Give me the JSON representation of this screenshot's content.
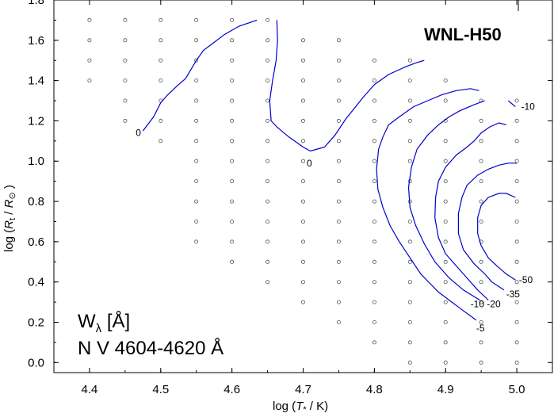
{
  "chart_data": {
    "type": "line",
    "title": "WNL-H50",
    "xlabel_main": "log (",
    "xlabel_var": "T",
    "xlabel_sub": "*",
    "xlabel_unit": " / K)",
    "ylabel_main": "log (",
    "ylabel_var": "R",
    "ylabel_sub": "t",
    "ylabel_mid": " / ",
    "ylabel_var2": "R",
    "ylabel_sub2": "⊙",
    "ylabel_end": " )",
    "annotation_line1": "W",
    "annotation_sub": "λ",
    "annotation_unit": " [Å]",
    "annotation_line2": "N V 4604-4620 Å",
    "xlim": [
      4.35,
      5.05
    ],
    "ylim": [
      -0.05,
      1.8
    ],
    "x_ticks": [
      4.4,
      4.5,
      4.6,
      4.7,
      4.8,
      4.9,
      5.0
    ],
    "x_tick_labels": [
      "4.4",
      "4.5",
      "4.6",
      "4.7",
      "4.8",
      "4.9",
      "5.0"
    ],
    "y_ticks": [
      0.0,
      0.2,
      0.4,
      0.6,
      0.8,
      1.0,
      1.2,
      1.4,
      1.6,
      1.8
    ],
    "y_tick_labels": [
      "0.0",
      "0.2",
      "0.4",
      "0.6",
      "0.8",
      "1.0",
      "1.2",
      "1.4",
      "1.6",
      "1.8"
    ],
    "grid_columns": [
      {
        "x": 4.4,
        "y_min": 1.4,
        "y_max": 1.7
      },
      {
        "x": 4.45,
        "y_min": 1.2,
        "y_max": 1.7
      },
      {
        "x": 4.5,
        "y_min": 1.1,
        "y_max": 1.7
      },
      {
        "x": 4.55,
        "y_min": 0.6,
        "y_max": 1.7
      },
      {
        "x": 4.6,
        "y_min": 0.5,
        "y_max": 1.7
      },
      {
        "x": 4.65,
        "y_min": 0.4,
        "y_max": 1.7
      },
      {
        "x": 4.7,
        "y_min": 0.3,
        "y_max": 1.6
      },
      {
        "x": 4.75,
        "y_min": 0.2,
        "y_max": 1.6
      },
      {
        "x": 4.8,
        "y_min": 0.1,
        "y_max": 1.5
      },
      {
        "x": 4.85,
        "y_min": 0.0,
        "y_max": 1.5
      },
      {
        "x": 4.9,
        "y_min": 0.0,
        "y_max": 1.4
      },
      {
        "x": 4.95,
        "y_min": 0.0,
        "y_max": 1.3
      },
      {
        "x": 5.0,
        "y_min": 0.0,
        "y_max": 1.3
      }
    ],
    "contours": [
      {
        "label": "0",
        "label_x": 4.465,
        "label_y": 1.14,
        "points": [
          [
            4.475,
            1.15
          ],
          [
            4.49,
            1.22
          ],
          [
            4.5,
            1.29
          ],
          [
            4.51,
            1.33
          ],
          [
            4.525,
            1.38
          ],
          [
            4.535,
            1.41
          ],
          [
            4.55,
            1.5
          ],
          [
            4.56,
            1.55
          ],
          [
            4.575,
            1.59
          ],
          [
            4.59,
            1.63
          ],
          [
            4.61,
            1.67
          ],
          [
            4.635,
            1.7
          ]
        ]
      },
      {
        "label": "0",
        "label_x": 4.705,
        "label_y": 0.99,
        "points": [
          [
            4.663,
            1.7
          ],
          [
            4.664,
            1.6
          ],
          [
            4.662,
            1.5
          ],
          [
            4.657,
            1.4
          ],
          [
            4.653,
            1.3
          ],
          [
            4.655,
            1.2
          ],
          [
            4.663,
            1.17
          ],
          [
            4.68,
            1.12
          ],
          [
            4.7,
            1.07
          ],
          [
            4.71,
            1.05
          ],
          [
            4.72,
            1.06
          ],
          [
            4.73,
            1.07
          ],
          [
            4.745,
            1.13
          ],
          [
            4.76,
            1.21
          ],
          [
            4.785,
            1.32
          ],
          [
            4.8,
            1.38
          ],
          [
            4.82,
            1.43
          ],
          [
            4.845,
            1.47
          ],
          [
            4.86,
            1.49
          ],
          [
            4.87,
            1.5
          ]
        ]
      },
      {
        "label": "-5",
        "label_x": 4.943,
        "label_y": 0.17,
        "points": [
          [
            4.943,
            0.21
          ],
          [
            4.92,
            0.27
          ],
          [
            4.89,
            0.35
          ],
          [
            4.865,
            0.44
          ],
          [
            4.85,
            0.52
          ],
          [
            4.835,
            0.6
          ],
          [
            4.822,
            0.68
          ],
          [
            4.812,
            0.77
          ],
          [
            4.805,
            0.86
          ],
          [
            4.803,
            0.96
          ],
          [
            4.806,
            1.06
          ],
          [
            4.812,
            1.12
          ],
          [
            4.82,
            1.18
          ],
          [
            4.835,
            1.22
          ],
          [
            4.855,
            1.27
          ],
          [
            4.875,
            1.3
          ],
          [
            4.895,
            1.33
          ],
          [
            4.915,
            1.35
          ],
          [
            4.935,
            1.36
          ],
          [
            4.947,
            1.35
          ]
        ]
      },
      {
        "label": "-10",
        "label_x": 4.935,
        "label_y": 0.29,
        "points": [
          [
            4.948,
            0.31
          ],
          [
            4.925,
            0.36
          ],
          [
            4.905,
            0.42
          ],
          [
            4.885,
            0.5
          ],
          [
            4.87,
            0.59
          ],
          [
            4.858,
            0.68
          ],
          [
            4.85,
            0.77
          ],
          [
            4.848,
            0.87
          ],
          [
            4.852,
            0.97
          ],
          [
            4.86,
            1.06
          ],
          [
            4.875,
            1.13
          ],
          [
            4.89,
            1.18
          ],
          [
            4.905,
            1.22
          ],
          [
            4.92,
            1.25
          ],
          [
            4.94,
            1.28
          ],
          [
            4.955,
            1.3
          ]
        ]
      },
      {
        "label": "-20",
        "label_x": 4.958,
        "label_y": 0.29,
        "points": [
          [
            4.96,
            0.31
          ],
          [
            4.945,
            0.36
          ],
          [
            4.93,
            0.42
          ],
          [
            4.915,
            0.48
          ],
          [
            4.9,
            0.54
          ],
          [
            4.89,
            0.62
          ],
          [
            4.885,
            0.72
          ],
          [
            4.886,
            0.82
          ],
          [
            4.89,
            0.9
          ],
          [
            4.9,
            0.97
          ],
          [
            4.915,
            1.03
          ],
          [
            4.93,
            1.07
          ],
          [
            4.94,
            1.1
          ],
          [
            4.95,
            1.14
          ],
          [
            4.962,
            1.17
          ],
          [
            4.975,
            1.19
          ],
          [
            4.985,
            1.18
          ]
        ]
      },
      {
        "label": "-35",
        "label_x": 4.985,
        "label_y": 0.34,
        "points": [
          [
            4.982,
            0.36
          ],
          [
            4.965,
            0.4
          ],
          [
            4.955,
            0.44
          ],
          [
            4.94,
            0.49
          ],
          [
            4.925,
            0.56
          ],
          [
            4.918,
            0.64
          ],
          [
            4.918,
            0.74
          ],
          [
            4.923,
            0.82
          ],
          [
            4.93,
            0.88
          ],
          [
            4.945,
            0.93
          ],
          [
            4.96,
            0.96
          ],
          [
            4.975,
            0.98
          ],
          [
            4.988,
            0.99
          ],
          [
            5.0,
            0.99
          ]
        ]
      },
      {
        "label": "-50",
        "label_x": 5.003,
        "label_y": 0.41,
        "points": [
          [
            4.998,
            0.41
          ],
          [
            4.985,
            0.44
          ],
          [
            4.972,
            0.48
          ],
          [
            4.96,
            0.52
          ],
          [
            4.95,
            0.58
          ],
          [
            4.945,
            0.64
          ],
          [
            4.945,
            0.72
          ],
          [
            4.95,
            0.78
          ],
          [
            4.96,
            0.82
          ],
          [
            4.975,
            0.84
          ],
          [
            4.985,
            0.84
          ],
          [
            4.998,
            0.82
          ]
        ]
      },
      {
        "label": "-10",
        "label_x": 5.006,
        "label_y": 1.27,
        "points": [
          [
            4.988,
            1.3
          ],
          [
            4.998,
            1.27
          ]
        ]
      }
    ]
  }
}
